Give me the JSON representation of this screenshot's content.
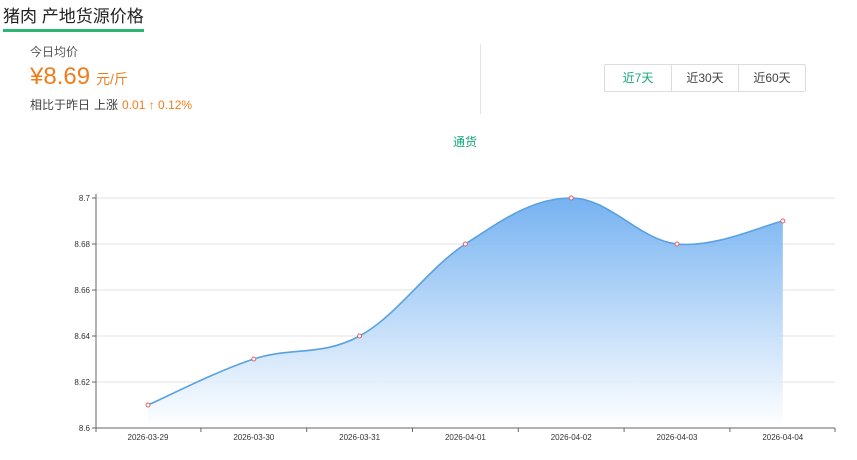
{
  "header": {
    "title": "猪肉 产地货源价格"
  },
  "summary": {
    "avg_label": "今日均价",
    "price": "¥8.69",
    "unit": "元/斤",
    "compare_prefix": "相比于昨日",
    "compare_direction": "上涨",
    "compare_value": "0.01 ↑ 0.12%"
  },
  "range_tabs": [
    {
      "label": "近7天",
      "active": true
    },
    {
      "label": "近30天",
      "active": false
    },
    {
      "label": "近60天",
      "active": false
    }
  ],
  "colors": {
    "accent": "#13a67b",
    "price": "#f07d1a",
    "line": "#5aa1e0",
    "area_top": "#6eaef0",
    "area_bottom": "#ffffff"
  },
  "chart_data": {
    "type": "area",
    "legend": "通货",
    "categories": [
      "2026-03-29",
      "2026-03-30",
      "2026-03-31",
      "2026-04-01",
      "2026-04-02",
      "2026-04-03",
      "2026-04-04"
    ],
    "series": [
      {
        "name": "通货",
        "values": [
          8.61,
          8.63,
          8.64,
          8.68,
          8.7,
          8.68,
          8.69
        ]
      }
    ],
    "ylim": [
      8.6,
      8.7
    ],
    "yticks": [
      "8.6",
      "8.62",
      "8.64",
      "8.66",
      "8.68",
      "8.7"
    ],
    "grid": true,
    "title": "",
    "xlabel": "",
    "ylabel": ""
  }
}
